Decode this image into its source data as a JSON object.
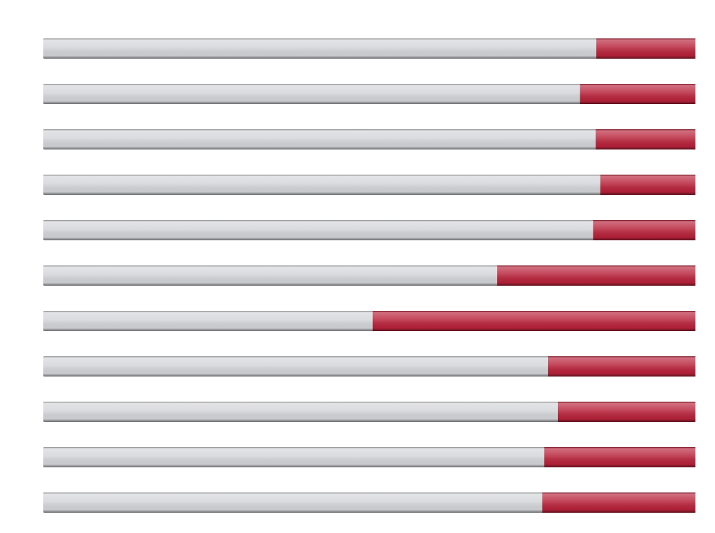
{
  "chart_data": {
    "type": "stacked-hbar",
    "categories": [
      null,
      null,
      null,
      null,
      null,
      null,
      null,
      null,
      null,
      null,
      null
    ],
    "series": [
      {
        "color": "#d4d5d9",
        "values": [
          84.8,
          82.3,
          84.7,
          85.4,
          84.3,
          69.6,
          50.5,
          77.4,
          78.9,
          76.8,
          76.5
        ]
      },
      {
        "color": "#b8223a",
        "values": [
          15.2,
          17.7,
          15.3,
          14.6,
          15.7,
          30.4,
          49.5,
          22.6,
          21.1,
          23.2,
          23.5
        ]
      }
    ],
    "xlim": [
      0,
      100
    ]
  }
}
